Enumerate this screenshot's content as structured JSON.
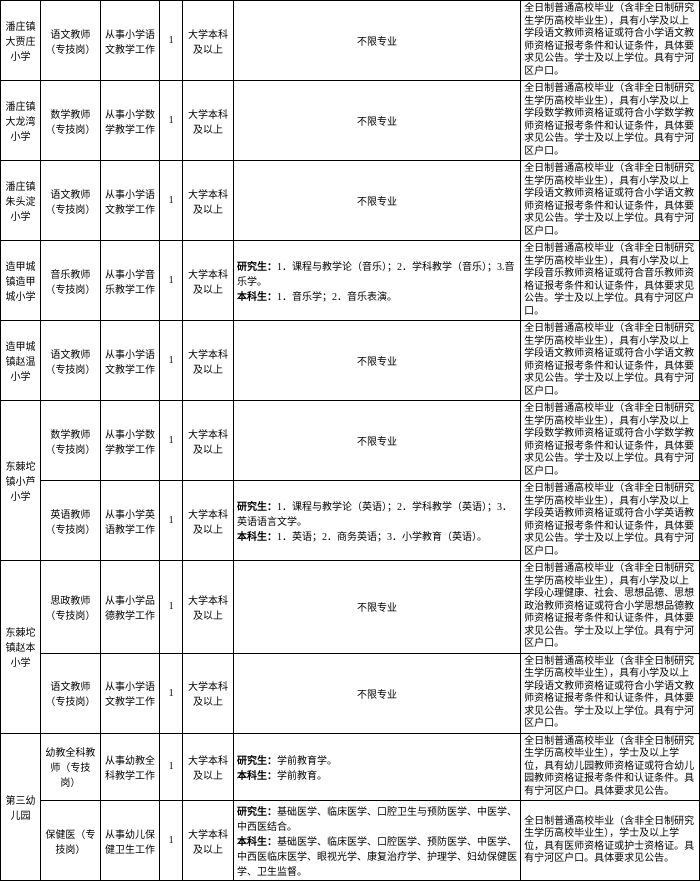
{
  "rows": [
    {
      "school": "潘庄镇大贾庄小学",
      "position": "语文教师（专技岗）",
      "work": "从事小学语文教学工作",
      "count": "1",
      "edu": "大学本科及以上",
      "major": "不限专业",
      "majorCenter": true,
      "req": "全日制普通高校毕业（含非全日制研究生学历高校毕业生），具有小学及以上学段语文教师资格证或符合小学语文教师资格证报考条件和认证条件，具体要求见公告。学士及以上学位。具有宁河区户口。"
    },
    {
      "school": "潘庄镇大龙湾小学",
      "position": "数学教师（专技岗）",
      "work": "从事小学数学教学工作",
      "count": "1",
      "edu": "大学本科及以上",
      "major": "不限专业",
      "majorCenter": true,
      "req": "全日制普通高校毕业（含非全日制研究生学历高校毕业生），具有小学及以上学段数学教师资格证或符合小学数学教师资格证报考条件和认证条件，具体要求见公告。学士及以上学位。具有宁河区户口。"
    },
    {
      "school": "潘庄镇朱头淀小学",
      "position": "语文教师（专技岗）",
      "work": "从事小学语文教学工作",
      "count": "1",
      "edu": "大学本科及以上",
      "major": "不限专业",
      "majorCenter": true,
      "req": "全日制普通高校毕业（含非全日制研究生学历高校毕业生），具有小学及以上学段语文教师资格证或符合小学语文教师资格证报考条件和认证条件，具体要求见公告。学士及以上学位。具有宁河区户口。"
    },
    {
      "school": "造甲城镇造甲城小学",
      "position": "音乐教师（专技岗）",
      "work": "从事小学音乐教学工作",
      "count": "1",
      "edu": "大学本科及以上",
      "major": "研究生：1．课程与教学论（音乐）；2．学科教学（音乐）；3.音乐学。\n本科生：1．音乐学；2．音乐表演。",
      "majorCenter": false,
      "req": "全日制普通高校毕业（含非全日制研究生学历高校毕业生），具有小学及以上学段音乐教师资格证或符合音乐教师资格证报考条件和认证条件，具体要求见公告。学士及以上学位。具有宁河区户口。"
    },
    {
      "school": "造甲城镇赵温小学",
      "position": "语文教师（专技岗）",
      "work": "从事小学语文教学工作",
      "count": "1",
      "edu": "大学本科及以上",
      "major": "不限专业",
      "majorCenter": true,
      "req": "全日制普通高校毕业（含非全日制研究生学历高校毕业生），具有小学及以上学段语文教师资格证或符合小学语文教师资格证报考条件和认证条件，具体要求见公告。学士及以上学位。具有宁河区户口。"
    },
    {
      "school": "东棘坨镇小芦小学",
      "rowspan": 2,
      "position": "数学教师（专技岗）",
      "work": "从事小学数学教学工作",
      "count": "1",
      "edu": "大学本科及以上",
      "major": "不限专业",
      "majorCenter": true,
      "req": "全日制普通高校毕业（含非全日制研究生学历高校毕业生），具有小学及以上学段数学教师资格证或符合小学数学教师资格证报考条件和认证条件，具体要求见公告。学士及以上学位。具有宁河区户口。"
    },
    {
      "position": "英语教师（专技岗）",
      "work": "从事小学英语教学工作",
      "count": "1",
      "edu": "大学本科及以上",
      "major": "研究生：1．课程与教学论（英语）；2．学科教学（英语）；3．英语语言文学。\n本科生：1．英语；2．商务英语；3．小学教育（英语）。",
      "majorCenter": false,
      "req": "全日制普通高校毕业（含非全日制研究生学历高校毕业生），具有小学及以上学段英语教师资格证或符合小学英语教师资格证报考条件和认证条件，具体要求见公告。学士及以上学位。具有宁河区户口。"
    },
    {
      "school": "东棘坨镇赵本小学",
      "rowspan": 2,
      "position": "思政教师（专技岗）",
      "work": "从事小学品德教学工作",
      "count": "1",
      "edu": "大学本科及以上",
      "major": "不限专业",
      "majorCenter": true,
      "req": "全日制普通高校毕业（含非全日制研究生学历高校毕业生），具有小学及以上学段心理健康、社会、思想品德、思想政治教师资格证或符合小学思想品德教师资格证报考条件和认证条件，具体要求见公告。学士及以上学位。具有宁河区户口。"
    },
    {
      "position": "语文教师（专技岗）",
      "work": "从事小学语文教学工作",
      "count": "1",
      "edu": "大学本科及以上",
      "major": "不限专业",
      "majorCenter": true,
      "req": "全日制普通高校毕业（含非全日制研究生学历高校毕业生），具有小学及以上学段语文教师资格证或符合小学语文教师资格证报考条件和认证条件，具体要求见公告。学士及以上学位。具有宁河区户口。"
    },
    {
      "school": "第三幼儿园",
      "rowspan": 2,
      "position": "幼教全科教师（专技岗）",
      "work": "从事幼教全科教学工作",
      "count": "1",
      "edu": "大学本科及以上",
      "major": "研究生：学前教育学。\n本科生：学前教育。",
      "majorCenter": false,
      "req": "全日制普通高校毕业（含非全日制研究生学历高校毕业生），学士及以上学位，具有幼儿园教师资格证或符合幼儿园教师资格证报考条件和认证条件。具有宁河区户口。具体要求见公告。"
    },
    {
      "position": "保健医（专技岗）",
      "work": "从事幼儿保健卫生工作",
      "count": "1",
      "edu": "大学本科及以上",
      "major": "研究生：基础医学、临床医学、口腔卫生与预防医学、中医学、中西医结合。\n本科生：基础医学、临床医学、口腔医学、预防医学、中医学、中西医临床医学、眼视光学、康复治疗学、护理学、妇幼保健医学、卫生监督。",
      "majorCenter": false,
      "req": "全日制普通高校毕业（含非全日制研究生学历高校毕业生），学士及以上学位，具有医师资格证或护士资格证。具有宁河区户口。具体要求见公告。"
    }
  ]
}
